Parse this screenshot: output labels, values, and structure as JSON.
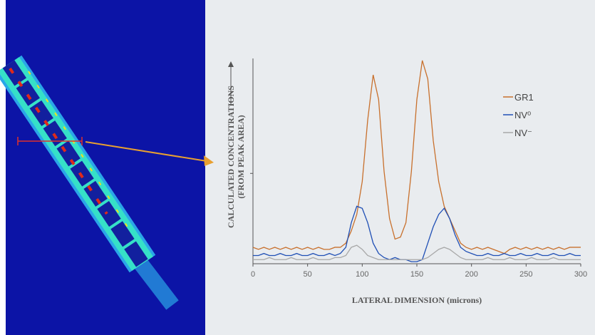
{
  "chart_data": {
    "type": "line",
    "y_label": "CALCULATED CONCENTRATIONS",
    "y_label_sub": "(FROM PEAK AREA)",
    "x_label": "LATERAL DIMENSION (microns)",
    "x": [
      0,
      5,
      10,
      15,
      20,
      25,
      30,
      35,
      40,
      45,
      50,
      55,
      60,
      65,
      70,
      75,
      80,
      85,
      90,
      95,
      100,
      105,
      110,
      115,
      120,
      125,
      130,
      135,
      140,
      145,
      150,
      155,
      160,
      165,
      170,
      175,
      180,
      185,
      190,
      195,
      200,
      205,
      210,
      215,
      220,
      225,
      230,
      235,
      240,
      245,
      250,
      255,
      260,
      265,
      270,
      275,
      280,
      285,
      290,
      295,
      300
    ],
    "xlim": [
      0,
      300
    ],
    "xticks": [
      0,
      50,
      100,
      150,
      200,
      250,
      300
    ],
    "ylim": [
      0,
      100
    ],
    "yticks": [
      44
    ],
    "legend": "upper right",
    "series": [
      {
        "name": "GR1",
        "color": "#c8702c",
        "values": [
          8,
          7,
          8,
          7,
          8,
          7,
          8,
          7,
          8,
          7,
          8,
          7,
          8,
          7,
          7,
          8,
          8,
          10,
          16,
          24,
          40,
          70,
          92,
          80,
          45,
          22,
          12,
          13,
          20,
          45,
          80,
          99,
          90,
          60,
          40,
          28,
          22,
          16,
          10,
          8,
          7,
          8,
          7,
          8,
          7,
          6,
          5,
          7,
          8,
          7,
          8,
          7,
          8,
          7,
          8,
          7,
          8,
          7,
          8,
          8,
          8
        ]
      },
      {
        "name": "NV⁰",
        "color": "#1f4fb5",
        "values": [
          4,
          4,
          5,
          4,
          4,
          5,
          4,
          4,
          5,
          4,
          4,
          5,
          4,
          4,
          5,
          4,
          5,
          8,
          20,
          28,
          27,
          20,
          10,
          5,
          3,
          2,
          3,
          2,
          2,
          1,
          1,
          2,
          10,
          18,
          24,
          27,
          22,
          14,
          8,
          6,
          5,
          4,
          4,
          5,
          4,
          4,
          5,
          4,
          4,
          5,
          4,
          4,
          5,
          4,
          4,
          5,
          4,
          4,
          5,
          4,
          4
        ]
      },
      {
        "name": "NV⁻",
        "color": "#a8a8a8",
        "values": [
          2,
          2,
          2,
          3,
          2,
          2,
          2,
          3,
          2,
          2,
          2,
          3,
          2,
          2,
          2,
          3,
          3,
          4,
          8,
          9,
          7,
          4,
          3,
          2,
          2,
          2,
          2,
          2,
          2,
          2,
          2,
          2,
          3,
          5,
          7,
          8,
          7,
          5,
          3,
          2,
          2,
          2,
          2,
          3,
          2,
          2,
          2,
          3,
          2,
          2,
          2,
          3,
          2,
          2,
          2,
          3,
          2,
          2,
          2,
          2,
          2
        ]
      }
    ]
  }
}
